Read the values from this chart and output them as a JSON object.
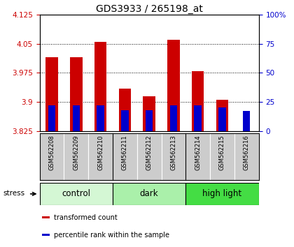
{
  "title": "GDS3933 / 265198_at",
  "samples": [
    "GSM562208",
    "GSM562209",
    "GSM562210",
    "GSM562211",
    "GSM562212",
    "GSM562213",
    "GSM562214",
    "GSM562215",
    "GSM562216"
  ],
  "transformed_count": [
    4.015,
    4.015,
    4.055,
    3.935,
    3.915,
    4.06,
    3.98,
    3.905,
    3.825
  ],
  "percentile_rank": [
    22,
    22,
    22,
    18,
    18,
    22,
    22,
    20,
    17
  ],
  "ylim_left": [
    3.825,
    4.125
  ],
  "ylim_right": [
    0,
    100
  ],
  "yticks_left": [
    3.825,
    3.9,
    3.975,
    4.05,
    4.125
  ],
  "yticks_right": [
    0,
    25,
    50,
    75,
    100
  ],
  "groups": [
    {
      "label": "control",
      "spans": [
        0,
        3
      ]
    },
    {
      "label": "dark",
      "spans": [
        3,
        6
      ]
    },
    {
      "label": "high light",
      "spans": [
        6,
        9
      ]
    }
  ],
  "group_bg_colors": [
    "#d4f7d4",
    "#aaf0aa",
    "#44dd44"
  ],
  "bar_color": "#cc0000",
  "percentile_color": "#0000cc",
  "bar_width": 0.5,
  "blue_bar_width": 0.3,
  "baseline": 3.825,
  "left_axis_color": "#cc0000",
  "right_axis_color": "#0000cc",
  "stress_label": "stress",
  "legend_items": [
    "transformed count",
    "percentile rank within the sample"
  ],
  "legend_colors": [
    "#cc0000",
    "#0000cc"
  ],
  "sample_bg_color": "#cccccc",
  "grid_yticks": [
    3.9,
    3.975,
    4.05
  ],
  "title_fontsize": 10,
  "tick_fontsize": 7.5,
  "sample_fontsize": 6,
  "group_fontsize": 8.5,
  "legend_fontsize": 7
}
